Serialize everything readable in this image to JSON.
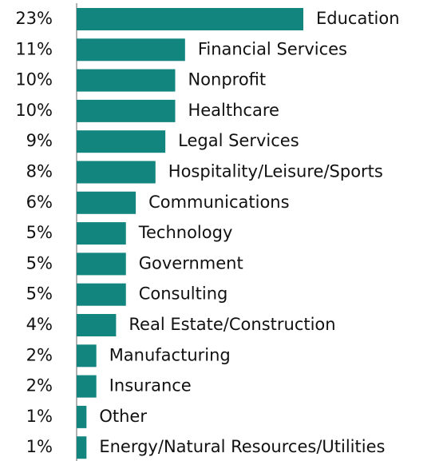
{
  "chart_data": {
    "type": "bar",
    "orientation": "horizontal",
    "categories": [
      "Education",
      "Financial Services",
      "Nonprofit",
      "Healthcare",
      "Legal Services",
      "Hospitality/Leisure/Sports",
      "Communications",
      "Technology",
      "Government",
      "Consulting",
      "Real Estate/Construction",
      "Manufacturing",
      "Insurance",
      "Other",
      "Energy/Natural Resources/Utilities"
    ],
    "values": [
      23,
      11,
      10,
      10,
      9,
      8,
      6,
      5,
      5,
      5,
      4,
      2,
      2,
      1,
      1
    ],
    "value_labels": [
      "23%",
      "11%",
      "10%",
      "10%",
      "9%",
      "8%",
      "6%",
      "5%",
      "5%",
      "5%",
      "4%",
      "2%",
      "2%",
      "1%",
      "1%"
    ],
    "color": "#12857f"
  }
}
